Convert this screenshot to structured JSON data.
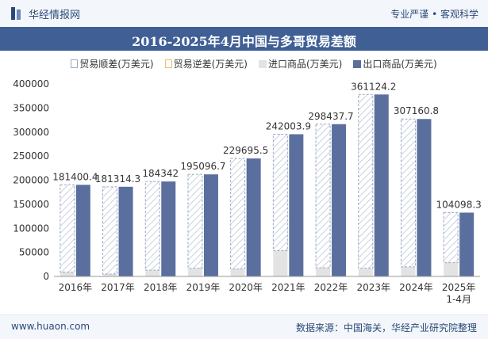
{
  "header": {
    "brand": "华经情报网",
    "tagline": "专业严谨 • 客观科学"
  },
  "title": "2016-2025年4月中国与多哥贸易差额",
  "legend": [
    {
      "label": "贸易顺差(万美元)",
      "color": "#dfe5ee"
    },
    {
      "label": "贸易逆差(万美元)",
      "color": "#f5e6b5"
    },
    {
      "label": "进口商品(万美元)",
      "color": "#e6e6e6"
    },
    {
      "label": "出口商品(万美元)",
      "color": "#5b6f9e"
    }
  ],
  "colors": {
    "surplus": "#ffffff",
    "surplus_hatch": "#c9d2e0",
    "import": "#e3e3e3",
    "export": "#5b6f9e",
    "header_bg": "#3f5f95"
  },
  "chart_data": {
    "type": "bar",
    "categories": [
      "2016年",
      "2017年",
      "2018年",
      "2019年",
      "2020年",
      "2021年",
      "2022年",
      "2023年",
      "2024年",
      "2025年\n1-4月"
    ],
    "series": [
      {
        "name": "贸易顺差(万美元)",
        "values": [
          181400.4,
          181314.3,
          184342,
          195096.7,
          229695.5,
          242003.9,
          298437.7,
          361124.2,
          307160.8,
          104098.3
        ]
      },
      {
        "name": "进口商品(万美元)",
        "values": [
          9000,
          5000,
          13000,
          17000,
          15500,
          53500,
          18000,
          17000,
          20000,
          28500
        ]
      },
      {
        "name": "出口商品(万美元)",
        "values": [
          190400.4,
          186314.3,
          197342,
          212096.7,
          245195.5,
          295503.9,
          316437.7,
          378124.2,
          327160.8,
          132598.3
        ]
      }
    ],
    "data_labels": [
      "181400.4",
      "181314.3",
      "184342",
      "195096.7",
      "229695.5",
      "242003.9",
      "298437.7",
      "361124.2",
      "307160.8",
      "104098.3"
    ],
    "yticks": [
      "0",
      "50000",
      "100000",
      "150000",
      "200000",
      "250000",
      "300000",
      "350000",
      "400000"
    ],
    "ylim": [
      0,
      400000
    ],
    "grid": false
  },
  "footer": {
    "website": "www.huaon.com",
    "source": "数据来源：中国海关，华经产业研究院整理"
  }
}
